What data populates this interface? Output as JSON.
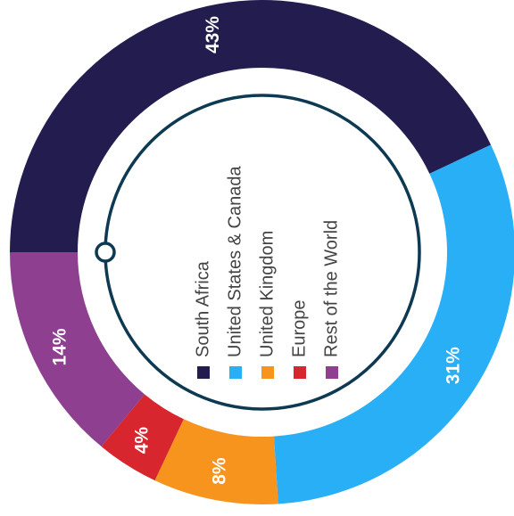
{
  "chart_data": {
    "type": "pie",
    "categories": [
      "South Africa",
      "United States & Canada",
      "United Kingdom",
      "Europe",
      "Rest of the World"
    ],
    "values": [
      43,
      31,
      8,
      4,
      14
    ],
    "value_labels": [
      "43%",
      "31%",
      "8%",
      "4%",
      "14%"
    ],
    "colors": [
      "#231d4f",
      "#29aff5",
      "#f7941d",
      "#d7262e",
      "#8e3f8f"
    ]
  }
}
